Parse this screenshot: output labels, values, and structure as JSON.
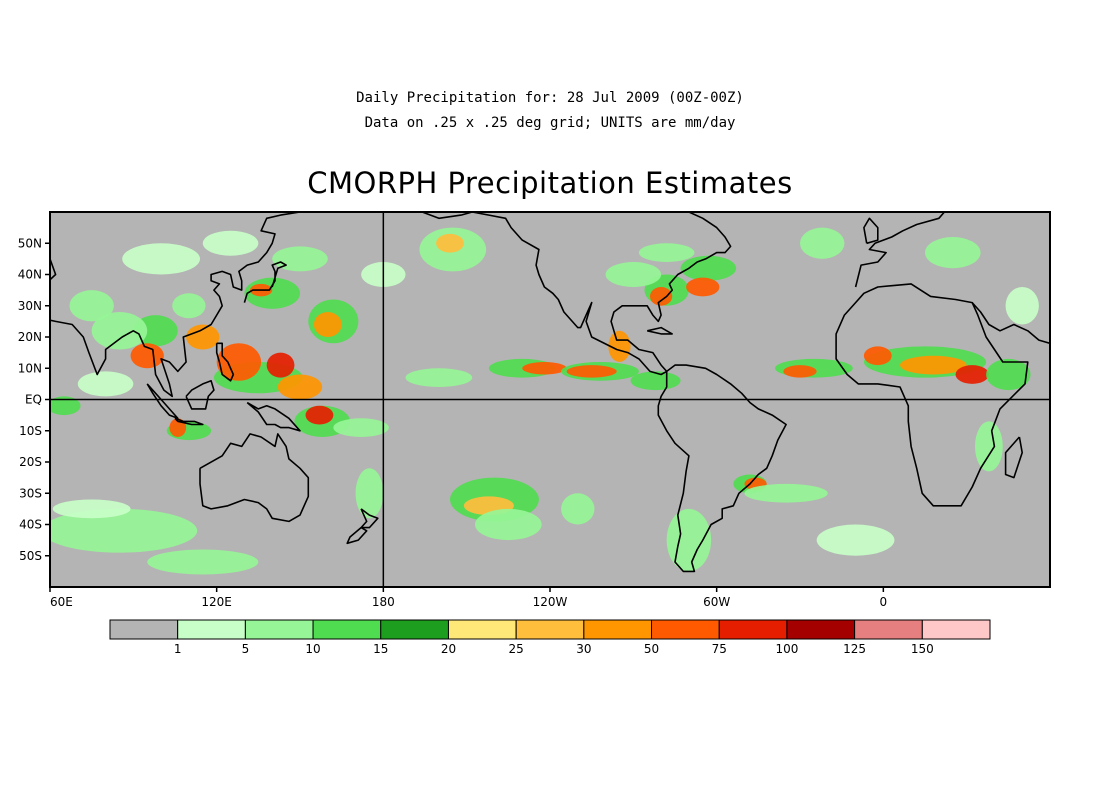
{
  "header": {
    "line1": "Daily Precipitation for: 28 Jul 2009 (00Z-00Z)",
    "line2": "Data on .25 x .25 deg grid; UNITS are mm/day",
    "title": "CMORPH Precipitation Estimates"
  },
  "map": {
    "projection": "plate-carree",
    "lon_range": [
      60,
      420
    ],
    "lat_range": [
      -60,
      60
    ],
    "lat_labels": [
      {
        "lat": 50,
        "label": "50N"
      },
      {
        "lat": 40,
        "label": "40N"
      },
      {
        "lat": 30,
        "label": "30N"
      },
      {
        "lat": 20,
        "label": "20N"
      },
      {
        "lat": 10,
        "label": "10N"
      },
      {
        "lat": 0,
        "label": "EQ"
      },
      {
        "lat": -10,
        "label": "10S"
      },
      {
        "lat": -20,
        "label": "20S"
      },
      {
        "lat": -30,
        "label": "30S"
      },
      {
        "lat": -40,
        "label": "40S"
      },
      {
        "lat": -50,
        "label": "50S"
      }
    ],
    "lon_labels": [
      {
        "lon": 60,
        "label": "60E"
      },
      {
        "lon": 120,
        "label": "120E"
      },
      {
        "lon": 180,
        "label": "180"
      },
      {
        "lon": 240,
        "label": "120W"
      },
      {
        "lon": 300,
        "label": "60W"
      },
      {
        "lon": 360,
        "label": "0"
      }
    ],
    "reference_lines": {
      "equator_lat": 0,
      "meridian_lon": 180
    },
    "background_color": "#b4b4b4",
    "coast_color": "#000000"
  },
  "legend": {
    "colors": [
      "#b4b4b4",
      "#c8ffc8",
      "#96f596",
      "#50dc50",
      "#1e9e1e",
      "#ffe878",
      "#ffbe3c",
      "#ff9600",
      "#ff5a00",
      "#e61e00",
      "#a50000",
      "#e68080",
      "#ffc8c8"
    ],
    "labels": [
      "1",
      "5",
      "10",
      "15",
      "20",
      "25",
      "30",
      "50",
      "75",
      "100",
      "125",
      "150"
    ]
  },
  "precip_areas": [
    {
      "lon": 135,
      "lat": 7,
      "rx": 16,
      "ry": 5,
      "level": 3
    },
    {
      "lon": 128,
      "lat": 12,
      "rx": 8,
      "ry": 6,
      "level": 8
    },
    {
      "lon": 143,
      "lat": 11,
      "rx": 5,
      "ry": 4,
      "level": 9
    },
    {
      "lon": 150,
      "lat": 4,
      "rx": 8,
      "ry": 4,
      "level": 7
    },
    {
      "lon": 158,
      "lat": -7,
      "rx": 10,
      "ry": 5,
      "level": 3
    },
    {
      "lon": 157,
      "lat": -5,
      "rx": 5,
      "ry": 3,
      "level": 9
    },
    {
      "lon": 172,
      "lat": -9,
      "rx": 10,
      "ry": 3,
      "level": 2
    },
    {
      "lon": 162,
      "lat": 25,
      "rx": 9,
      "ry": 7,
      "level": 3
    },
    {
      "lon": 160,
      "lat": 24,
      "rx": 5,
      "ry": 4,
      "level": 7
    },
    {
      "lon": 115,
      "lat": 20,
      "rx": 6,
      "ry": 4,
      "level": 7
    },
    {
      "lon": 98,
      "lat": 22,
      "rx": 8,
      "ry": 5,
      "level": 3
    },
    {
      "lon": 95,
      "lat": 14,
      "rx": 6,
      "ry": 4,
      "level": 8
    },
    {
      "lon": 110,
      "lat": -10,
      "rx": 8,
      "ry": 3,
      "level": 3
    },
    {
      "lon": 106,
      "lat": -9,
      "rx": 3,
      "ry": 3,
      "level": 8
    },
    {
      "lon": 65,
      "lat": -2,
      "rx": 6,
      "ry": 3,
      "level": 3
    },
    {
      "lon": 140,
      "lat": 34,
      "rx": 10,
      "ry": 5,
      "level": 3
    },
    {
      "lon": 136,
      "lat": 35,
      "rx": 4,
      "ry": 2,
      "level": 8
    },
    {
      "lon": 110,
      "lat": 30,
      "rx": 6,
      "ry": 4,
      "level": 2
    },
    {
      "lon": 85,
      "lat": 22,
      "rx": 10,
      "ry": 6,
      "level": 2
    },
    {
      "lon": 75,
      "lat": 30,
      "rx": 8,
      "ry": 5,
      "level": 2
    },
    {
      "lon": 150,
      "lat": 45,
      "rx": 10,
      "ry": 4,
      "level": 2
    },
    {
      "lon": 205,
      "lat": 48,
      "rx": 12,
      "ry": 7,
      "level": 2
    },
    {
      "lon": 204,
      "lat": 50,
      "rx": 5,
      "ry": 3,
      "level": 6
    },
    {
      "lon": 230,
      "lat": 10,
      "rx": 12,
      "ry": 3,
      "level": 3
    },
    {
      "lon": 238,
      "lat": 10,
      "rx": 8,
      "ry": 2,
      "level": 8
    },
    {
      "lon": 258,
      "lat": 9,
      "rx": 14,
      "ry": 3,
      "level": 3
    },
    {
      "lon": 255,
      "lat": 9,
      "rx": 9,
      "ry": 2,
      "level": 8
    },
    {
      "lon": 278,
      "lat": 6,
      "rx": 9,
      "ry": 3,
      "level": 3
    },
    {
      "lon": 200,
      "lat": 7,
      "rx": 12,
      "ry": 3,
      "level": 2
    },
    {
      "lon": 265,
      "lat": 17,
      "rx": 4,
      "ry": 5,
      "level": 7
    },
    {
      "lon": 282,
      "lat": 35,
      "rx": 8,
      "ry": 5,
      "level": 3
    },
    {
      "lon": 280,
      "lat": 33,
      "rx": 4,
      "ry": 3,
      "level": 8
    },
    {
      "lon": 270,
      "lat": 40,
      "rx": 10,
      "ry": 4,
      "level": 2
    },
    {
      "lon": 297,
      "lat": 42,
      "rx": 10,
      "ry": 4,
      "level": 3
    },
    {
      "lon": 295,
      "lat": 36,
      "rx": 6,
      "ry": 3,
      "level": 8
    },
    {
      "lon": 282,
      "lat": 47,
      "rx": 10,
      "ry": 3,
      "level": 2
    },
    {
      "lon": 338,
      "lat": 50,
      "rx": 8,
      "ry": 5,
      "level": 2
    },
    {
      "lon": 385,
      "lat": 47,
      "rx": 10,
      "ry": 5,
      "level": 2
    },
    {
      "lon": 335,
      "lat": 10,
      "rx": 14,
      "ry": 3,
      "level": 3
    },
    {
      "lon": 330,
      "lat": 9,
      "rx": 6,
      "ry": 2,
      "level": 8
    },
    {
      "lon": 375,
      "lat": 12,
      "rx": 22,
      "ry": 5,
      "level": 3
    },
    {
      "lon": 378,
      "lat": 11,
      "rx": 12,
      "ry": 3,
      "level": 7
    },
    {
      "lon": 392,
      "lat": 8,
      "rx": 6,
      "ry": 3,
      "level": 9
    },
    {
      "lon": 358,
      "lat": 14,
      "rx": 5,
      "ry": 3,
      "level": 8
    },
    {
      "lon": 405,
      "lat": 8,
      "rx": 8,
      "ry": 5,
      "level": 3
    },
    {
      "lon": 220,
      "lat": -32,
      "rx": 16,
      "ry": 7,
      "level": 3
    },
    {
      "lon": 218,
      "lat": -34,
      "rx": 9,
      "ry": 3,
      "level": 6
    },
    {
      "lon": 225,
      "lat": -40,
      "rx": 12,
      "ry": 5,
      "level": 2
    },
    {
      "lon": 250,
      "lat": -35,
      "rx": 6,
      "ry": 5,
      "level": 2
    },
    {
      "lon": 312,
      "lat": -27,
      "rx": 6,
      "ry": 3,
      "level": 3
    },
    {
      "lon": 314,
      "lat": -27,
      "rx": 4,
      "ry": 2,
      "level": 8
    },
    {
      "lon": 325,
      "lat": -30,
      "rx": 15,
      "ry": 3,
      "level": 2
    },
    {
      "lon": 85,
      "lat": -42,
      "rx": 28,
      "ry": 7,
      "level": 2
    },
    {
      "lon": 115,
      "lat": -52,
      "rx": 20,
      "ry": 4,
      "level": 2
    },
    {
      "lon": 75,
      "lat": -35,
      "rx": 14,
      "ry": 3,
      "level": 1
    },
    {
      "lon": 175,
      "lat": -30,
      "rx": 5,
      "ry": 8,
      "level": 2
    },
    {
      "lon": 290,
      "lat": -45,
      "rx": 8,
      "ry": 10,
      "level": 2
    },
    {
      "lon": 350,
      "lat": -45,
      "rx": 14,
      "ry": 5,
      "level": 1
    },
    {
      "lon": 398,
      "lat": -15,
      "rx": 5,
      "ry": 8,
      "level": 2
    },
    {
      "lon": 410,
      "lat": 30,
      "rx": 6,
      "ry": 6,
      "level": 1
    },
    {
      "lon": 80,
      "lat": 5,
      "rx": 10,
      "ry": 4,
      "level": 1
    },
    {
      "lon": 180,
      "lat": 40,
      "rx": 8,
      "ry": 4,
      "level": 1
    },
    {
      "lon": 100,
      "lat": 45,
      "rx": 14,
      "ry": 5,
      "level": 1
    },
    {
      "lon": 125,
      "lat": 50,
      "rx": 10,
      "ry": 4,
      "level": 1
    }
  ]
}
